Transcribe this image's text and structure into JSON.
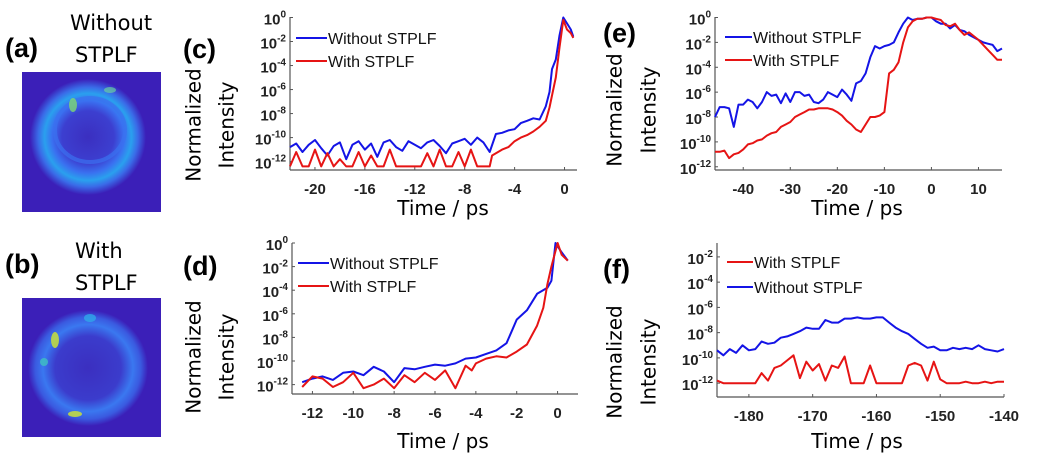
{
  "images": [
    {
      "label": "(a)",
      "title_lines": [
        "Without",
        "STPLF"
      ],
      "colormap": [
        "#3b1fb8",
        "#3a5bf0",
        "#22b8e8",
        "#8fe05a"
      ]
    },
    {
      "label": "(b)",
      "title_lines": [
        "With",
        "STPLF"
      ],
      "colormap": [
        "#3b1fb8",
        "#3a5bf0",
        "#22b8e8",
        "#c8e03a"
      ]
    }
  ],
  "chart_data": [
    {
      "id": "c",
      "panel_label": "(c)",
      "type": "line",
      "xlabel": "Time / ps",
      "ylabel_lines": [
        "Normalized",
        "Intensity"
      ],
      "yscale": "log",
      "xlim": [
        -22,
        1
      ],
      "ylim": [
        2e-13,
        1.1
      ],
      "grid": false,
      "legend": "top-left",
      "xticks": [
        -20,
        -16,
        -12,
        -8,
        -4,
        0
      ],
      "yticks": [
        {
          "value": 1,
          "base": "10",
          "exp": "0"
        },
        {
          "value": 0.01,
          "base": "10",
          "exp": "-2"
        },
        {
          "value": 0.0001,
          "base": "10",
          "exp": "-4"
        },
        {
          "value": 1e-06,
          "base": "10",
          "exp": "-6"
        },
        {
          "value": 1e-08,
          "base": "10",
          "exp": "-8"
        },
        {
          "value": 1e-10,
          "base": "10",
          "exp": "-10"
        },
        {
          "value": 1e-12,
          "base": "10",
          "exp": "-12"
        }
      ],
      "series": [
        {
          "name": "Without STPLF",
          "color": "#1414e6",
          "x": [
            -22,
            -21.5,
            -21,
            -20.5,
            -20,
            -19.5,
            -19,
            -18.5,
            -18,
            -17.5,
            -17,
            -16.5,
            -16,
            -15.5,
            -15,
            -14.5,
            -14,
            -13.5,
            -13,
            -12.5,
            -12,
            -11.5,
            -11,
            -10.5,
            -10,
            -9.5,
            -9,
            -8.5,
            -8,
            -7.5,
            -7,
            -6.5,
            -6,
            -5.5,
            -5,
            -4.5,
            -4,
            -3.5,
            -3,
            -2.5,
            -2,
            -1.5,
            -1.2,
            -1,
            -0.7,
            -0.4,
            -0.1,
            0.2,
            0.5,
            0.7
          ],
          "y": [
            1.6e-11,
            3.2e-11,
            6.3e-12,
            2.5e-11,
            6.3e-11,
            1.3e-11,
            3.2e-12,
            2e-11,
            4e-11,
            1.6e-12,
            2.5e-11,
            5e-11,
            1e-11,
            3.2e-11,
            2.5e-12,
            4e-11,
            6.3e-11,
            1.6e-11,
            7.9e-12,
            5e-11,
            2.5e-11,
            1.3e-11,
            4e-11,
            6.3e-11,
            2e-11,
            5e-12,
            3.2e-11,
            5e-11,
            7.9e-11,
            2.5e-11,
            1e-10,
            4e-11,
            6.3e-12,
            2e-10,
            2.5e-10,
            4e-10,
            5e-10,
            1.6e-09,
            2.5e-09,
            4e-09,
            3.2e-09,
            4e-08,
            6.3e-07,
            5e-05,
            0.00032,
            0.032,
            1,
            0.32,
            0.1,
            0.025
          ]
        },
        {
          "name": "With STPLF",
          "color": "#e61414",
          "x": [
            -22,
            -21.5,
            -21,
            -20.5,
            -20,
            -19.5,
            -19,
            -18.5,
            -18,
            -17.5,
            -17,
            -16.5,
            -16,
            -15.5,
            -15,
            -14.5,
            -14,
            -13.5,
            -13,
            -12.5,
            -12,
            -11.5,
            -11,
            -10.5,
            -10,
            -9.5,
            -9,
            -8.5,
            -8,
            -7.5,
            -7,
            -6.5,
            -6,
            -5.8,
            -5,
            -4.5,
            -4,
            -3.5,
            -3,
            -2.5,
            -2,
            -1.5,
            -1.2,
            -1,
            -0.7,
            -0.4,
            -0.1,
            0.2,
            0.5,
            0.7
          ],
          "y": [
            4e-13,
            6.3e-12,
            4e-13,
            4e-13,
            1e-11,
            4e-13,
            5e-12,
            4e-13,
            1.6e-12,
            4e-13,
            4e-13,
            6.3e-12,
            4e-13,
            3.2e-12,
            4e-13,
            4e-13,
            1e-11,
            4e-13,
            4e-13,
            4e-13,
            4e-13,
            4e-13,
            5e-12,
            4e-13,
            1e-11,
            4e-13,
            4e-13,
            6.3e-12,
            4e-13,
            1e-11,
            4e-13,
            4e-13,
            4e-13,
            3.2e-12,
            1e-11,
            1.6e-11,
            5e-11,
            1e-10,
            1.6e-10,
            3.2e-10,
            7.9e-10,
            2.5e-09,
            3.2e-08,
            3.2e-07,
            1e-05,
            0.0032,
            0.63,
            0.1,
            0.05,
            0.02
          ]
        }
      ]
    },
    {
      "id": "d",
      "panel_label": "(d)",
      "type": "line",
      "xlabel": "Time / ps",
      "ylabel_lines": [
        "Normalized",
        "Intensity"
      ],
      "yscale": "log",
      "xlim": [
        -13,
        1
      ],
      "ylim": [
        1.6e-13,
        1
      ],
      "grid": false,
      "legend": "top-left",
      "xticks": [
        -12,
        -10,
        -8,
        -6,
        -4,
        -2,
        0
      ],
      "yticks": [
        {
          "value": 1,
          "base": "10",
          "exp": "0"
        },
        {
          "value": 0.01,
          "base": "10",
          "exp": "-2"
        },
        {
          "value": 0.0001,
          "base": "10",
          "exp": "-4"
        },
        {
          "value": 1e-06,
          "base": "10",
          "exp": "-6"
        },
        {
          "value": 1e-08,
          "base": "10",
          "exp": "-8"
        },
        {
          "value": 1e-10,
          "base": "10",
          "exp": "-10"
        },
        {
          "value": 1e-12,
          "base": "10",
          "exp": "-12"
        }
      ],
      "series": [
        {
          "name": "Without STPLF",
          "color": "#1414e6",
          "x": [
            -12.5,
            -12,
            -11.5,
            -11,
            -10.5,
            -10,
            -9.5,
            -9,
            -8.5,
            -8,
            -7.5,
            -7,
            -6.5,
            -6,
            -5.5,
            -5,
            -4.5,
            -4,
            -3.5,
            -3,
            -2.5,
            -2.2,
            -2,
            -1.5,
            -1,
            -0.5,
            -0.3,
            -0.1,
            0.2,
            0.5
          ],
          "y": [
            1.6e-12,
            3.2e-12,
            5e-12,
            2.5e-12,
            1e-11,
            1.3e-11,
            6.3e-12,
            3.2e-11,
            1.3e-11,
            1.6e-12,
            2.5e-11,
            2e-11,
            3.2e-11,
            5e-11,
            4e-11,
            6.3e-11,
            1.6e-10,
            2e-10,
            4e-10,
            7.9e-10,
            3.2e-09,
            5e-08,
            3.2e-07,
            2e-06,
            5e-05,
            0.00016,
            0.00063,
            1,
            0.16,
            0.032
          ]
        },
        {
          "name": "With STPLF",
          "color": "#e61414",
          "x": [
            -12.5,
            -12,
            -11.5,
            -11,
            -10.5,
            -10,
            -9.5,
            -9,
            -8.5,
            -8,
            -7.5,
            -7,
            -6.5,
            -6,
            -5.5,
            -5,
            -4.5,
            -4.2,
            -4,
            -3.5,
            -3,
            -2.5,
            -2,
            -1.5,
            -1,
            -0.7,
            -0.5,
            -0.3,
            0,
            0.2,
            0.5
          ],
          "y": [
            6.3e-13,
            5e-12,
            3.2e-12,
            6.3e-13,
            1.6e-12,
            1e-11,
            5e-13,
            1e-12,
            3.2e-12,
            5e-13,
            6.3e-12,
            1.6e-12,
            1e-11,
            2.5e-12,
            1.6e-11,
            5e-13,
            4e-11,
            1.6e-11,
            6.3e-11,
            1.6e-10,
            2.5e-10,
            2e-10,
            6.3e-10,
            2.5e-09,
            1e-07,
            3.2e-06,
            0.00032,
            0.01,
            1,
            0.1,
            0.032
          ]
        }
      ]
    },
    {
      "id": "e",
      "panel_label": "(e)",
      "type": "line",
      "xlabel": "Time / ps",
      "ylabel_lines": [
        "Normalized",
        "Intensity"
      ],
      "yscale": "log",
      "xlim": [
        -46,
        15
      ],
      "ylim": [
        5.5e-13,
        1.1
      ],
      "grid": false,
      "legend": "top-left",
      "xticks": [
        -40,
        -30,
        -20,
        -10,
        0,
        10
      ],
      "yticks": [
        {
          "value": 1,
          "base": "10",
          "exp": "0"
        },
        {
          "value": 0.01,
          "base": "10",
          "exp": "-2"
        },
        {
          "value": 0.0001,
          "base": "10",
          "exp": "-4"
        },
        {
          "value": 1e-06,
          "base": "10",
          "exp": "-6"
        },
        {
          "value": 1e-08,
          "base": "10",
          "exp": "-8"
        },
        {
          "value": 1e-10,
          "base": "10",
          "exp": "-10"
        },
        {
          "value": 1e-12,
          "base": "10",
          "exp": "-12"
        }
      ],
      "x": [
        -46,
        -45,
        -44,
        -43,
        -42,
        -41,
        -40,
        -39,
        -38,
        -37,
        -36,
        -35,
        -34,
        -33,
        -32,
        -31,
        -30,
        -29,
        -28,
        -27,
        -26,
        -25,
        -24,
        -23,
        -22,
        -21,
        -20,
        -19,
        -18,
        -17,
        -16,
        -15,
        -14,
        -13,
        -12,
        -11,
        -10,
        -9,
        -8,
        -7,
        -6,
        -5,
        -4,
        -3,
        -2,
        -1,
        0,
        1,
        2,
        3,
        4,
        5,
        6,
        7,
        8,
        9,
        10,
        11,
        12,
        13,
        14,
        15
      ],
      "series": [
        {
          "name": "Without STPLF",
          "color": "#1414e6",
          "y": [
            1e-08,
            6.3e-08,
            6.3e-08,
            5e-08,
            1.6e-09,
            1e-07,
            1e-07,
            2.5e-07,
            1.6e-07,
            5e-08,
            1.6e-07,
            1e-06,
            5e-07,
            6.3e-07,
            1.3e-07,
            7.9e-07,
            1.6e-07,
            1e-06,
            1e-06,
            5e-07,
            6.3e-07,
            1.6e-07,
            1.3e-07,
            2.5e-07,
            1e-06,
            6.3e-07,
            4e-07,
            1.6e-06,
            6.3e-07,
            2e-07,
            5e-06,
            7.9e-06,
            3.2e-05,
            0.00063,
            0.005,
            0.0032,
            0.005,
            0.0063,
            0.01,
            0.063,
            0.32,
            1,
            0.63,
            0.79,
            0.79,
            1,
            1,
            0.5,
            0.32,
            0.32,
            0.13,
            0.25,
            0.1,
            0.079,
            0.04,
            0.025,
            0.016,
            0.01,
            0.0079,
            0.0063,
            0.002,
            0.0032
          ]
        },
        {
          "name": "With STPLF",
          "color": "#e61414",
          "y": [
            1.6e-11,
            1.6e-11,
            2e-11,
            5e-12,
            1e-11,
            1.3e-11,
            2.5e-11,
            6.3e-11,
            7.9e-11,
            1.3e-10,
            1.6e-10,
            3.2e-10,
            5e-10,
            6.3e-10,
            1.6e-09,
            2.5e-09,
            4e-09,
            1e-08,
            1.6e-08,
            2.5e-08,
            4e-08,
            4e-08,
            5e-08,
            5e-08,
            5e-08,
            4e-08,
            2.5e-08,
            1.3e-08,
            5e-09,
            2.5e-09,
            1e-09,
            6.3e-10,
            2.5e-09,
            1e-08,
            1e-08,
            1.3e-08,
            2.5e-08,
            3.2e-05,
            6.3e-05,
            0.00025,
            0.01,
            0.16,
            0.5,
            0.79,
            0.79,
            1,
            1,
            0.79,
            0.63,
            0.25,
            0.2,
            0.32,
            0.1,
            0.04,
            0.063,
            0.032,
            0.016,
            0.0063,
            0.0025,
            0.001,
            0.0004,
            0.0004
          ]
        }
      ]
    },
    {
      "id": "f",
      "panel_label": "(f)",
      "type": "line",
      "xlabel": "Time / ps",
      "ylabel_lines": [
        "Normalized",
        "Intensity"
      ],
      "yscale": "log",
      "xlim": [
        -185,
        -140
      ],
      "ylim": [
        8e-14,
        0.126
      ],
      "grid": false,
      "legend": "top-left",
      "xticks": [
        -180,
        -170,
        -160,
        -150,
        -140
      ],
      "yticks": [
        {
          "value": 0.01,
          "base": "10",
          "exp": "-2"
        },
        {
          "value": 0.0001,
          "base": "10",
          "exp": "-4"
        },
        {
          "value": 1e-06,
          "base": "10",
          "exp": "-6"
        },
        {
          "value": 1e-08,
          "base": "10",
          "exp": "-8"
        },
        {
          "value": 1e-10,
          "base": "10",
          "exp": "-10"
        },
        {
          "value": 1e-12,
          "base": "10",
          "exp": "-12"
        }
      ],
      "x": [
        -185,
        -184,
        -183,
        -182,
        -181,
        -180,
        -179,
        -178,
        -177,
        -176,
        -175,
        -174,
        -173,
        -172,
        -171,
        -170,
        -169,
        -168,
        -167,
        -166,
        -165,
        -164,
        -163,
        -162,
        -161,
        -160,
        -159,
        -158,
        -157,
        -156,
        -155,
        -154,
        -153,
        -152,
        -151,
        -150,
        -149,
        -148,
        -147,
        -146,
        -145,
        -144,
        -143,
        -142,
        -141,
        -140
      ],
      "series": [
        {
          "name": "With STPLF",
          "color": "#e61414",
          "y": [
            1.6e-12,
            1e-12,
            1e-12,
            1e-12,
            1e-12,
            1e-12,
            1e-12,
            6.3e-12,
            1.6e-12,
            1.6e-11,
            2.5e-11,
            6.3e-11,
            1.6e-10,
            2.5e-12,
            5e-11,
            1e-11,
            3.2e-11,
            1.6e-12,
            2.5e-11,
            1.6e-11,
            1.3e-10,
            1e-12,
            1e-12,
            1e-12,
            2.5e-11,
            1e-12,
            1e-12,
            1e-12,
            1e-12,
            1e-12,
            2.5e-11,
            4e-11,
            2.5e-11,
            1.6e-12,
            5e-11,
            2e-12,
            1e-12,
            1e-12,
            1e-12,
            1.3e-12,
            1e-12,
            1e-12,
            1.3e-12,
            1e-12,
            1.3e-12,
            1.3e-12
          ]
        },
        {
          "name": "Without STPLF",
          "color": "#1414e6",
          "y": [
            4e-10,
            1.6e-10,
            5e-10,
            2.5e-10,
            1e-09,
            4e-10,
            5e-10,
            2e-09,
            1.3e-09,
            1.6e-09,
            4e-09,
            5e-09,
            7.9e-09,
            1.3e-08,
            2.5e-08,
            2e-08,
            2e-08,
            1e-07,
            6.3e-08,
            6.3e-08,
            1.3e-07,
            1.3e-07,
            1.6e-07,
            1.3e-07,
            1.3e-07,
            1.6e-07,
            1.6e-07,
            6.3e-08,
            2.5e-08,
            1.3e-08,
            7.9e-09,
            3.2e-09,
            1.3e-09,
            6.3e-10,
            7.9e-10,
            4e-10,
            4e-10,
            6.3e-10,
            5e-10,
            6.3e-10,
            5e-10,
            1e-09,
            5e-10,
            4e-10,
            3.2e-10,
            5e-10
          ]
        }
      ]
    }
  ]
}
